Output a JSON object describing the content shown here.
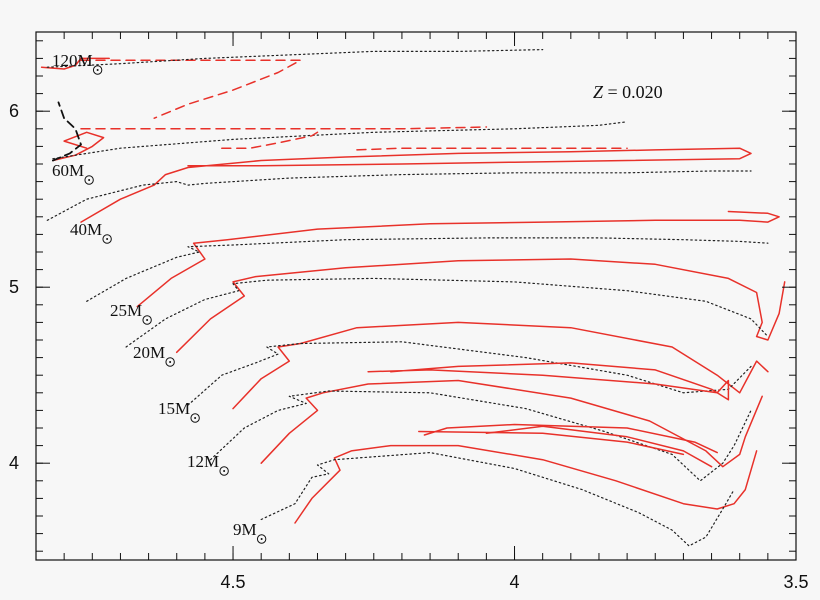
{
  "chart_data": {
    "type": "line",
    "title": "",
    "xlabel": "",
    "ylabel": "",
    "annotation": {
      "symbol": "Z",
      "text": " = 0.020"
    },
    "xlim": [
      4.85,
      3.5
    ],
    "ylim": [
      3.45,
      6.45
    ],
    "x_ticks": [
      4.5,
      4.0,
      3.5
    ],
    "x_tick_labels": [
      "4.5",
      "4",
      "3.5"
    ],
    "y_ticks": [
      4,
      5,
      6
    ],
    "y_tick_labels": [
      "4",
      "5",
      "6"
    ],
    "mass_labels": [
      {
        "text": "120M",
        "mass": 120
      },
      {
        "text": "60M",
        "mass": 60
      },
      {
        "text": "40M",
        "mass": 40
      },
      {
        "text": "25M",
        "mass": 25
      },
      {
        "text": "20M",
        "mass": 20
      },
      {
        "text": "15M",
        "mass": 15
      },
      {
        "text": "12M",
        "mass": 12
      },
      {
        "text": "9M",
        "mass": 9
      }
    ],
    "series_styles": {
      "red_solid": "#e8312a",
      "red_dashed": "#e8312a",
      "black_dotted": "#222222",
      "black_dashed": "#111111"
    },
    "tracks": [
      {
        "mass": 9,
        "style": "red_solid",
        "points": [
          [
            4.39,
            3.66
          ],
          [
            4.36,
            3.8
          ],
          [
            4.31,
            3.96
          ],
          [
            4.32,
            4.03
          ],
          [
            4.29,
            4.07
          ],
          [
            4.22,
            4.1
          ],
          [
            4.1,
            4.1
          ],
          [
            3.95,
            4.02
          ],
          [
            3.82,
            3.9
          ],
          [
            3.7,
            3.77
          ],
          [
            3.64,
            3.74
          ],
          [
            3.61,
            3.77
          ],
          [
            3.59,
            3.85
          ],
          [
            3.57,
            4.07
          ]
        ]
      },
      {
        "mass": 9,
        "style": "black_dotted",
        "points": [
          [
            4.45,
            3.68
          ],
          [
            4.39,
            3.77
          ],
          [
            4.36,
            3.92
          ],
          [
            4.33,
            3.94
          ],
          [
            4.35,
            3.99
          ],
          [
            4.32,
            4.02
          ],
          [
            4.15,
            4.06
          ],
          [
            4.0,
            3.97
          ],
          [
            3.88,
            3.85
          ],
          [
            3.78,
            3.72
          ],
          [
            3.72,
            3.62
          ],
          [
            3.69,
            3.53
          ],
          [
            3.66,
            3.58
          ],
          [
            3.63,
            3.74
          ],
          [
            3.61,
            3.85
          ]
        ]
      },
      {
        "mass": 12,
        "style": "red_solid",
        "points": [
          [
            4.45,
            4.0
          ],
          [
            4.4,
            4.17
          ],
          [
            4.35,
            4.3
          ],
          [
            4.37,
            4.37
          ],
          [
            4.34,
            4.4
          ],
          [
            4.26,
            4.45
          ],
          [
            4.1,
            4.47
          ],
          [
            3.9,
            4.37
          ],
          [
            3.76,
            4.24
          ],
          [
            3.66,
            4.07
          ],
          [
            3.63,
            3.98
          ],
          [
            3.6,
            4.05
          ],
          [
            3.59,
            4.15
          ],
          [
            3.56,
            4.38
          ]
        ]
      },
      {
        "mass": 12,
        "style": "black_dotted",
        "points": [
          [
            4.54,
            4.02
          ],
          [
            4.48,
            4.2
          ],
          [
            4.42,
            4.3
          ],
          [
            4.37,
            4.34
          ],
          [
            4.4,
            4.38
          ],
          [
            4.33,
            4.41
          ],
          [
            4.15,
            4.4
          ],
          [
            3.98,
            4.31
          ],
          [
            3.84,
            4.18
          ],
          [
            3.72,
            4.05
          ],
          [
            3.67,
            3.9
          ],
          [
            3.63,
            4.0
          ],
          [
            3.61,
            4.1
          ],
          [
            3.58,
            4.3
          ]
        ]
      },
      {
        "mass": 12,
        "style": "red_solid",
        "points": [
          [
            4.05,
            4.17
          ],
          [
            3.95,
            4.21
          ],
          [
            3.8,
            4.15
          ],
          [
            3.7,
            4.07
          ],
          [
            3.65,
            3.98
          ]
        ]
      },
      {
        "mass": 12,
        "style": "red_solid",
        "points": [
          [
            4.17,
            4.18
          ],
          [
            3.95,
            4.17
          ],
          [
            3.8,
            4.12
          ],
          [
            3.7,
            4.05
          ]
        ]
      },
      {
        "mass": 12,
        "style": "red_solid",
        "points": [
          [
            4.16,
            4.16
          ],
          [
            4.12,
            4.2
          ],
          [
            4.0,
            4.22
          ],
          [
            3.8,
            4.2
          ],
          [
            3.68,
            4.12
          ],
          [
            3.64,
            4.06
          ]
        ]
      },
      {
        "mass": 15,
        "style": "red_solid",
        "points": [
          [
            4.5,
            4.31
          ],
          [
            4.45,
            4.48
          ],
          [
            4.4,
            4.58
          ],
          [
            4.42,
            4.66
          ],
          [
            4.38,
            4.68
          ],
          [
            4.28,
            4.77
          ],
          [
            4.1,
            4.8
          ],
          [
            3.9,
            4.77
          ],
          [
            3.72,
            4.66
          ],
          [
            3.64,
            4.5
          ],
          [
            3.6,
            4.4
          ],
          [
            3.57,
            4.58
          ],
          [
            3.55,
            4.52
          ]
        ]
      },
      {
        "mass": 15,
        "style": "black_dotted",
        "points": [
          [
            4.58,
            4.33
          ],
          [
            4.52,
            4.5
          ],
          [
            4.46,
            4.57
          ],
          [
            4.42,
            4.62
          ],
          [
            4.44,
            4.66
          ],
          [
            4.38,
            4.68
          ],
          [
            4.2,
            4.69
          ],
          [
            3.98,
            4.6
          ],
          [
            3.8,
            4.5
          ],
          [
            3.7,
            4.4
          ],
          [
            3.62,
            4.42
          ],
          [
            3.58,
            4.55
          ]
        ]
      },
      {
        "mass": 15,
        "style": "red_solid",
        "points": [
          [
            4.22,
            4.52
          ],
          [
            4.1,
            4.55
          ],
          [
            3.9,
            4.57
          ],
          [
            3.75,
            4.53
          ],
          [
            3.65,
            4.42
          ],
          [
            3.62,
            4.36
          ],
          [
            3.62,
            4.47
          ],
          [
            3.64,
            4.4
          ],
          [
            3.75,
            4.45
          ],
          [
            3.95,
            4.5
          ],
          [
            4.15,
            4.53
          ],
          [
            4.26,
            4.52
          ]
        ]
      },
      {
        "mass": 20,
        "style": "red_solid",
        "points": [
          [
            4.6,
            4.63
          ],
          [
            4.54,
            4.82
          ],
          [
            4.48,
            4.95
          ],
          [
            4.5,
            5.03
          ],
          [
            4.46,
            5.06
          ],
          [
            4.3,
            5.11
          ],
          [
            4.1,
            5.15
          ],
          [
            3.9,
            5.16
          ],
          [
            3.75,
            5.13
          ],
          [
            3.62,
            5.05
          ],
          [
            3.57,
            4.97
          ],
          [
            3.56,
            4.8
          ],
          [
            3.57,
            4.72
          ],
          [
            3.55,
            4.7
          ],
          [
            3.53,
            4.85
          ],
          [
            3.52,
            5.03
          ]
        ]
      },
      {
        "mass": 20,
        "style": "black_dotted",
        "points": [
          [
            4.69,
            4.66
          ],
          [
            4.62,
            4.82
          ],
          [
            4.55,
            4.93
          ],
          [
            4.49,
            4.98
          ],
          [
            4.5,
            5.02
          ],
          [
            4.44,
            5.04
          ],
          [
            4.25,
            5.05
          ],
          [
            4.0,
            5.03
          ],
          [
            3.8,
            4.98
          ],
          [
            3.66,
            4.92
          ],
          [
            3.58,
            4.82
          ],
          [
            3.55,
            4.72
          ]
        ]
      },
      {
        "mass": 25,
        "style": "red_solid",
        "points": [
          [
            4.67,
            4.89
          ],
          [
            4.61,
            5.05
          ],
          [
            4.55,
            5.16
          ],
          [
            4.57,
            5.25
          ],
          [
            4.51,
            5.27
          ],
          [
            4.35,
            5.33
          ],
          [
            4.15,
            5.36
          ],
          [
            3.95,
            5.37
          ],
          [
            3.75,
            5.38
          ],
          [
            3.6,
            5.38
          ],
          [
            3.55,
            5.37
          ],
          [
            3.53,
            5.4
          ],
          [
            3.55,
            5.42
          ],
          [
            3.62,
            5.43
          ]
        ]
      },
      {
        "mass": 25,
        "style": "black_dotted",
        "points": [
          [
            4.76,
            4.92
          ],
          [
            4.69,
            5.05
          ],
          [
            4.6,
            5.17
          ],
          [
            4.56,
            5.2
          ],
          [
            4.58,
            5.23
          ],
          [
            4.5,
            5.24
          ],
          [
            4.3,
            5.27
          ],
          [
            4.05,
            5.28
          ],
          [
            3.85,
            5.28
          ],
          [
            3.7,
            5.27
          ],
          [
            3.6,
            5.26
          ],
          [
            3.55,
            5.25
          ]
        ]
      },
      {
        "mass": 40,
        "style": "red_solid",
        "points": [
          [
            4.77,
            5.37
          ],
          [
            4.7,
            5.5
          ],
          [
            4.64,
            5.58
          ],
          [
            4.62,
            5.64
          ],
          [
            4.58,
            5.68
          ],
          [
            4.45,
            5.72
          ],
          [
            4.3,
            5.74
          ],
          [
            4.1,
            5.76
          ],
          [
            3.9,
            5.77
          ],
          [
            3.75,
            5.78
          ],
          [
            3.6,
            5.79
          ],
          [
            3.58,
            5.76
          ],
          [
            3.6,
            5.73
          ],
          [
            3.8,
            5.72
          ],
          [
            4.0,
            5.71
          ],
          [
            4.2,
            5.7
          ],
          [
            4.45,
            5.69
          ],
          [
            4.58,
            5.69
          ]
        ]
      },
      {
        "mass": 40,
        "style": "black_dotted",
        "points": [
          [
            4.83,
            5.38
          ],
          [
            4.76,
            5.5
          ],
          [
            4.66,
            5.58
          ],
          [
            4.6,
            5.6
          ],
          [
            4.58,
            5.58
          ],
          [
            4.55,
            5.59
          ],
          [
            4.4,
            5.62
          ],
          [
            4.2,
            5.64
          ],
          [
            4.0,
            5.65
          ],
          [
            3.8,
            5.65
          ],
          [
            3.65,
            5.66
          ],
          [
            3.58,
            5.66
          ]
        ]
      },
      {
        "mass": 60,
        "style": "red_solid",
        "points": [
          [
            4.82,
            5.72
          ],
          [
            4.78,
            5.75
          ],
          [
            4.75,
            5.8
          ],
          [
            4.73,
            5.85
          ],
          [
            4.76,
            5.88
          ],
          [
            4.8,
            5.83
          ],
          [
            4.76,
            5.79
          ]
        ]
      },
      {
        "mass": 60,
        "style": "black_dashed",
        "points": [
          [
            4.82,
            5.72
          ],
          [
            4.79,
            5.76
          ],
          [
            4.77,
            5.81
          ],
          [
            4.78,
            5.9
          ],
          [
            4.8,
            5.96
          ],
          [
            4.81,
            6.05
          ]
        ]
      },
      {
        "mass": 60,
        "style": "black_dotted",
        "points": [
          [
            4.82,
            5.73
          ],
          [
            4.7,
            5.79
          ],
          [
            4.5,
            5.84
          ],
          [
            4.25,
            5.88
          ],
          [
            4.0,
            5.9
          ],
          [
            3.85,
            5.92
          ],
          [
            3.8,
            5.94
          ]
        ]
      },
      {
        "mass": 60,
        "style": "red_dashed",
        "points": [
          [
            4.77,
            5.9
          ],
          [
            4.6,
            5.9
          ],
          [
            4.4,
            5.9
          ],
          [
            4.2,
            5.9
          ],
          [
            4.05,
            5.91
          ]
        ]
      },
      {
        "mass": 60,
        "style": "red_dashed",
        "points": [
          [
            4.52,
            5.79
          ],
          [
            4.47,
            5.79
          ],
          [
            4.42,
            5.82
          ],
          [
            4.36,
            5.86
          ],
          [
            4.35,
            5.88
          ]
        ]
      },
      {
        "mass": 60,
        "style": "red_dashed",
        "points": [
          [
            4.28,
            5.78
          ],
          [
            4.2,
            5.79
          ],
          [
            4.0,
            5.79
          ],
          [
            3.85,
            5.79
          ],
          [
            3.8,
            5.79
          ]
        ]
      },
      {
        "mass": 120,
        "style": "red_solid",
        "points": [
          [
            4.84,
            6.25
          ],
          [
            4.8,
            6.24
          ],
          [
            4.78,
            6.26
          ],
          [
            4.77,
            6.3
          ],
          [
            4.72,
            6.3
          ]
        ]
      },
      {
        "mass": 120,
        "style": "red_dashed",
        "points": [
          [
            4.77,
            6.29
          ],
          [
            4.6,
            6.29
          ],
          [
            4.45,
            6.29
          ],
          [
            4.38,
            6.29
          ],
          [
            4.42,
            6.22
          ],
          [
            4.5,
            6.12
          ],
          [
            4.58,
            6.04
          ],
          [
            4.64,
            5.96
          ]
        ]
      },
      {
        "mass": 120,
        "style": "black_dotted",
        "points": [
          [
            4.83,
            6.25
          ],
          [
            4.7,
            6.27
          ],
          [
            4.55,
            6.3
          ],
          [
            4.4,
            6.32
          ],
          [
            4.25,
            6.34
          ],
          [
            4.1,
            6.34
          ],
          [
            3.95,
            6.35
          ]
        ]
      }
    ]
  }
}
